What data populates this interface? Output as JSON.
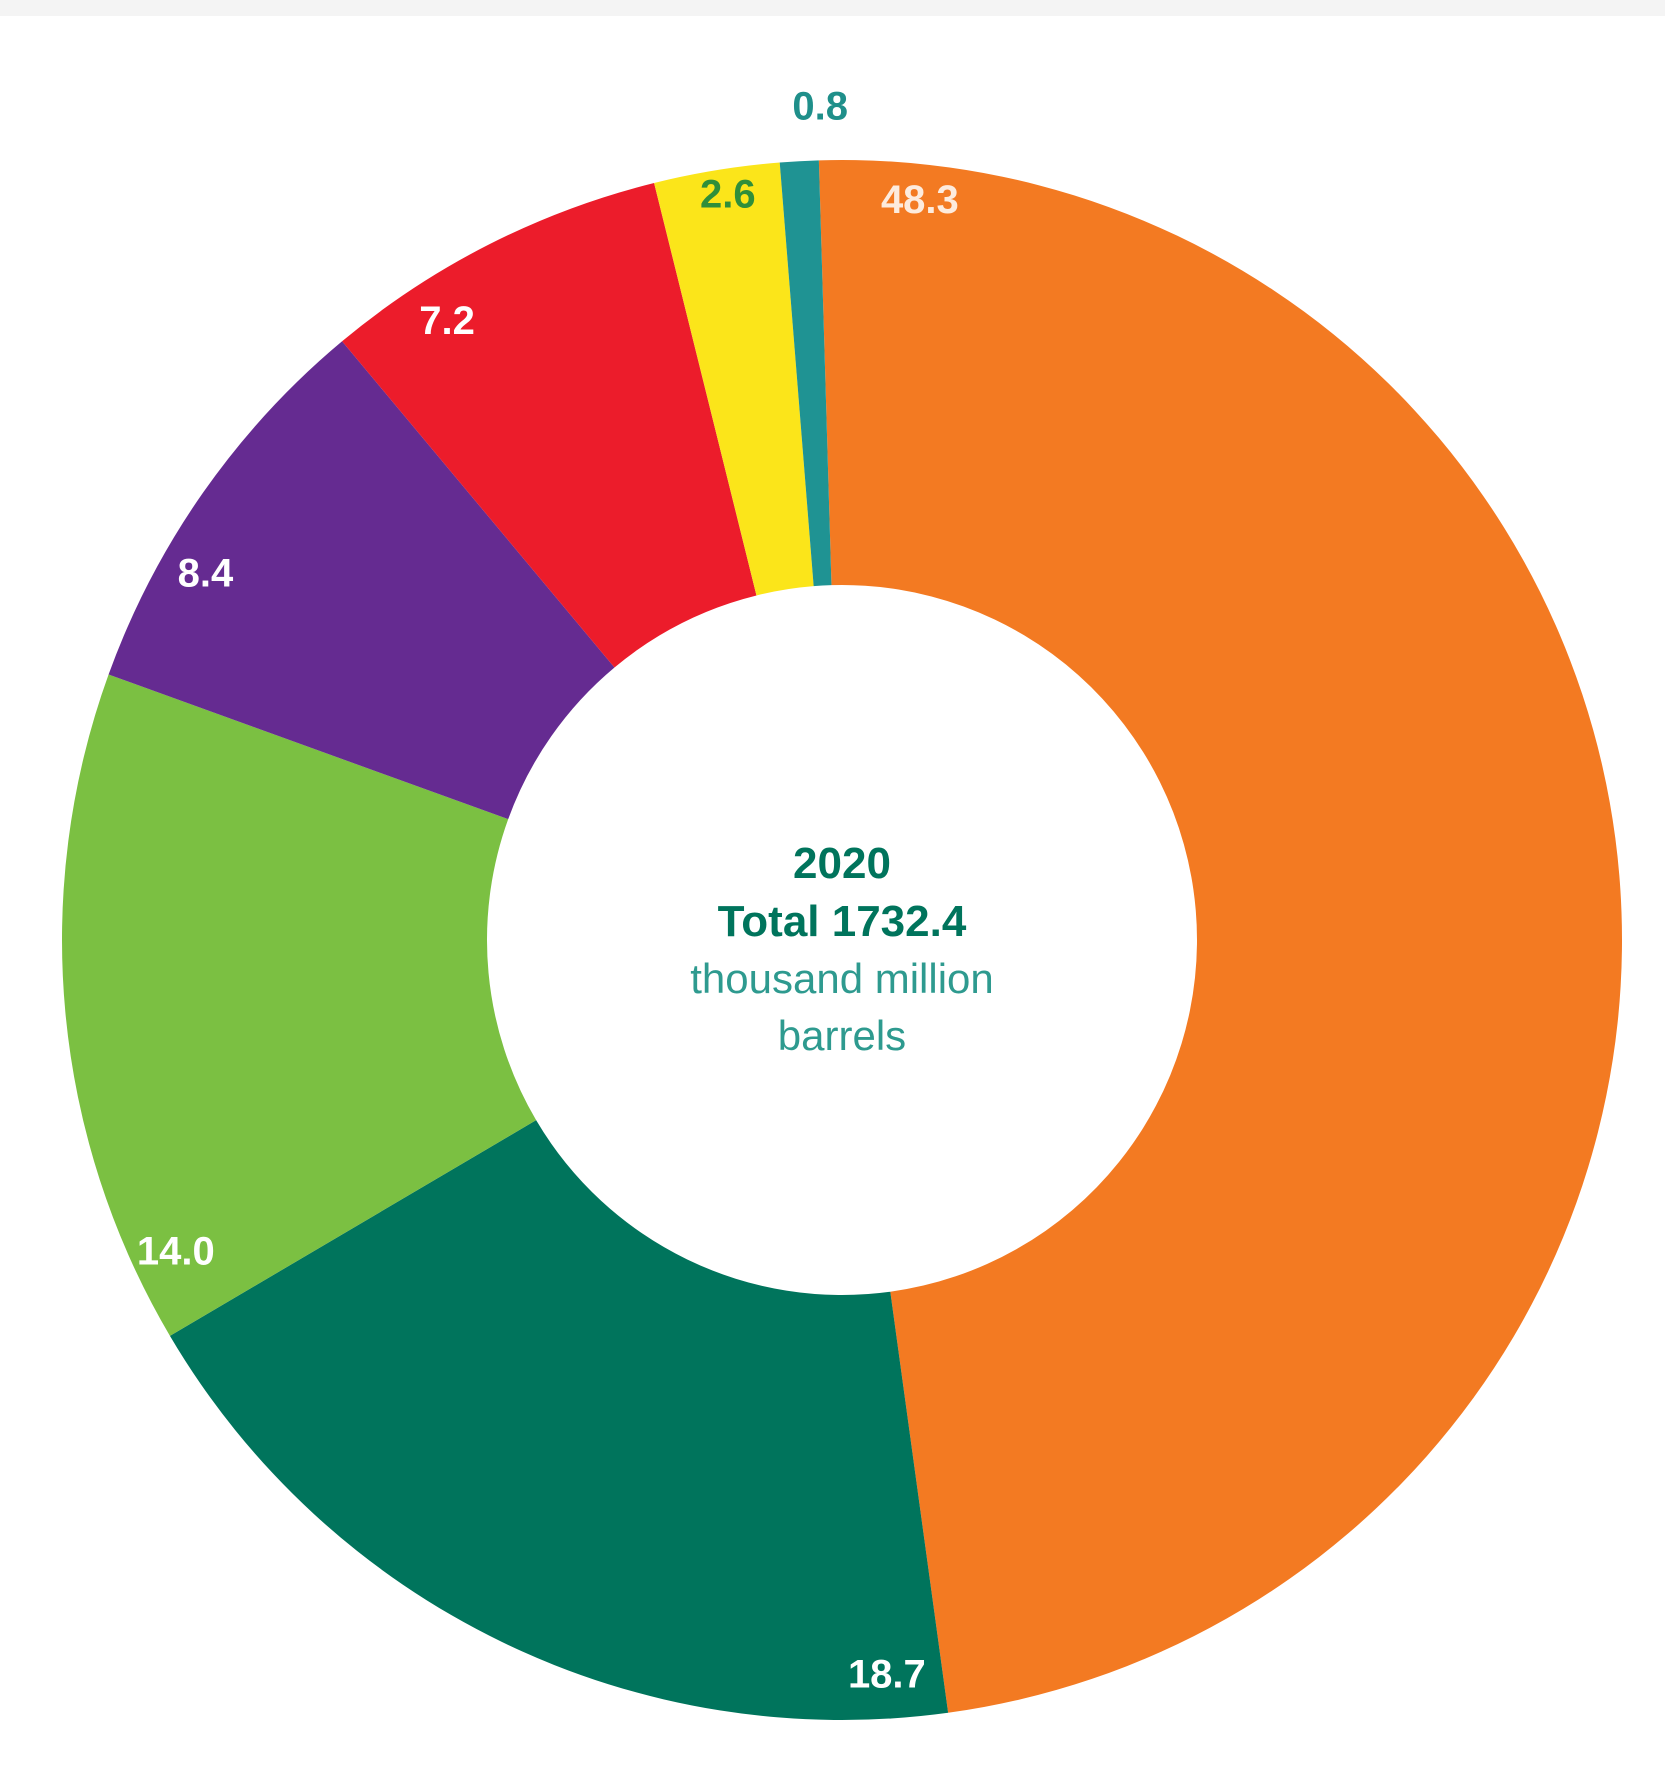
{
  "chart_data": {
    "type": "pie",
    "donut": true,
    "start_angle_deg": -1.7,
    "slices": [
      {
        "value": 48.3,
        "label": "48.3",
        "color": "#F37A22",
        "label_color": "#FDEBDD"
      },
      {
        "value": 18.7,
        "label": "18.7",
        "color": "#00745C",
        "label_color": "#FFFFFF"
      },
      {
        "value": 14.0,
        "label": "14.0",
        "color": "#7BC042",
        "label_color": "#FFFFFF"
      },
      {
        "value": 8.4,
        "label": "8.4",
        "color": "#652B91",
        "label_color": "#FFFFFF"
      },
      {
        "value": 7.2,
        "label": "7.2",
        "color": "#EC1C2B",
        "label_color": "#FFFFFF"
      },
      {
        "value": 2.6,
        "label": "2.6",
        "color": "#FBE51A",
        "label_color": "#2F8F3A"
      },
      {
        "value": 0.8,
        "label": "0.8",
        "color": "#1F9393",
        "label_color": "#1F8F8A"
      }
    ],
    "center": {
      "year": "2020",
      "total": "Total 1732.4",
      "unit_line1": "thousand million",
      "unit_line2": "barrels",
      "year_color": "#00745C",
      "unit_color": "#2E9A8F"
    }
  }
}
